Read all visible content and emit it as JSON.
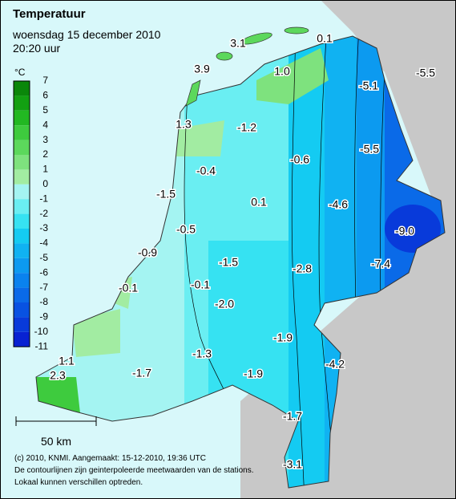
{
  "header": {
    "title": "Temperatuur",
    "date": "woensdag 15 december 2010",
    "time": "20:20 uur"
  },
  "legend": {
    "unit": "°C",
    "labels": [
      "7",
      "6",
      "5",
      "4",
      "3",
      "2",
      "1",
      "0",
      "-1",
      "-2",
      "-3",
      "-4",
      "-5",
      "-6",
      "-7",
      "-8",
      "-9",
      "-10",
      "-11"
    ],
    "colors": [
      "#0a870a",
      "#12a012",
      "#22b822",
      "#3ecb3e",
      "#5cd85c",
      "#7ee27e",
      "#a2eca2",
      "#a4f4f2",
      "#6aeef2",
      "#36e2f2",
      "#14cbf2",
      "#10b2f2",
      "#0c9af0",
      "#0a82ee",
      "#0a6ae8",
      "#0852e2",
      "#083ada",
      "#0822d2"
    ]
  },
  "stations": [
    "3.1",
    "0.1",
    "3.9",
    "1.0",
    "-5.5",
    "-5.1",
    "1.3",
    "-1.2",
    "-0.6",
    "-5.5",
    "-0.4",
    "-1.5",
    "0.1",
    "-4.6",
    "-0.5",
    "-9.0",
    "-0.9",
    "-1.5",
    "-2.8",
    "-7.4",
    "-0.1",
    "-0.1",
    "-2.0",
    "-1.9",
    "-1.3",
    "-1.9",
    "-4.2",
    "1.1",
    "2.3",
    "-1.7",
    "-1.7",
    "-3.1"
  ],
  "scale": "50 km",
  "footer": [
    "(c) 2010, KNMI. Aangemaakt: 15-12-2010, 19:36 UTC",
    "De contourlijnen zijn geinterpoleerde meetwaarden van de stations.",
    "Lokaal kunnen verschillen optreden."
  ]
}
